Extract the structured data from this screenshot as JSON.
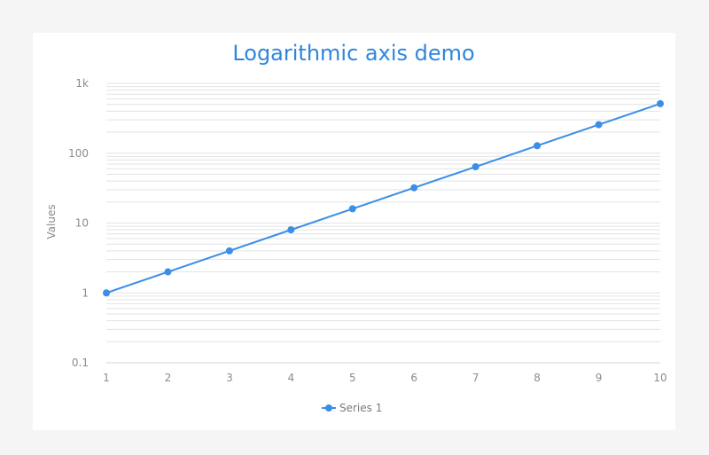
{
  "chart_data": {
    "type": "line",
    "title": "Logarithmic axis demo",
    "xlabel": "",
    "ylabel": "Values",
    "y_scale": "log",
    "ylim": [
      0.1,
      1000
    ],
    "xlim": [
      1,
      10
    ],
    "x": [
      1,
      2,
      3,
      4,
      5,
      6,
      7,
      8,
      9,
      10
    ],
    "x_tick_labels": [
      "1",
      "2",
      "3",
      "4",
      "5",
      "6",
      "7",
      "8",
      "9",
      "10"
    ],
    "y_tick_values": [
      0.1,
      1,
      10,
      100,
      1000
    ],
    "y_tick_labels": [
      "0.1",
      "1",
      "10",
      "100",
      "1k"
    ],
    "grid": true,
    "legend_position": "bottom",
    "series": [
      {
        "name": "Series 1",
        "color": "#3a8ee6",
        "values": [
          1,
          2,
          4,
          8,
          16,
          32,
          64,
          128,
          256,
          512
        ]
      }
    ]
  },
  "colors": {
    "title": "#2f86dd",
    "series": "#3a8ee6",
    "grid": "#e3e3e3",
    "text": "#8c8c8c"
  }
}
